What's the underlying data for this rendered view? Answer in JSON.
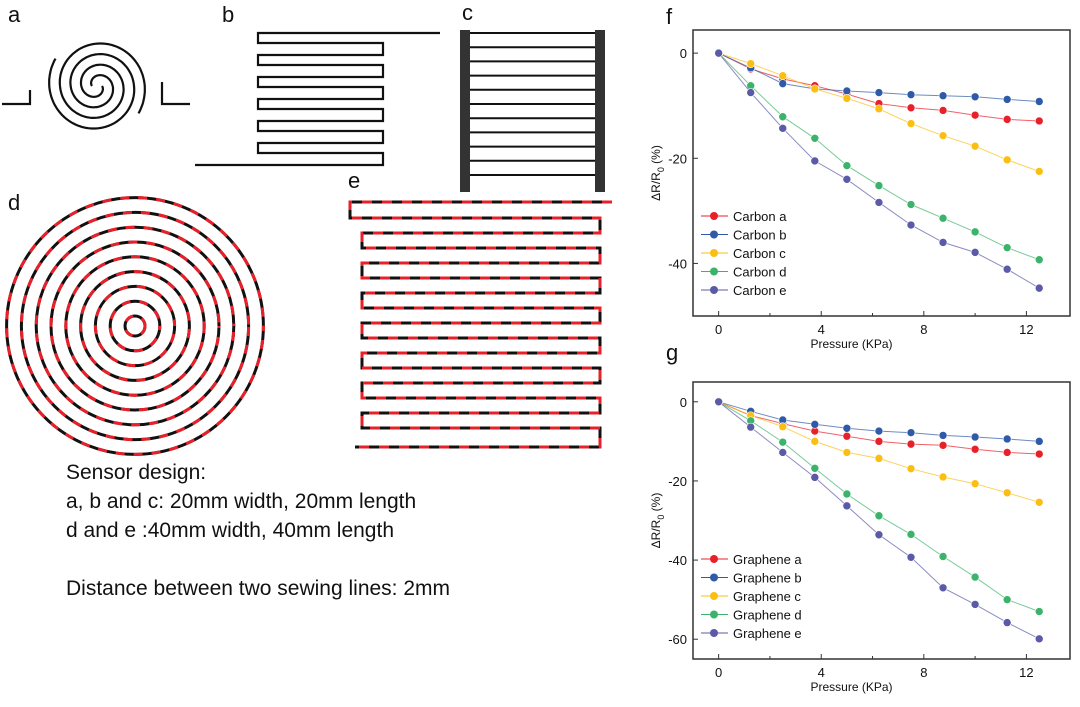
{
  "panel_labels": {
    "a": "a",
    "b": "b",
    "c": "c",
    "d": "d",
    "e": "e",
    "f": "f",
    "g": "g"
  },
  "description": {
    "line1": "Sensor design:",
    "line2": "a, b and c: 20mm width, 20mm length",
    "line3": "d and e :40mm width, 40mm length",
    "line4": "Distance between two sewing lines: 2mm"
  },
  "colors": {
    "line": "#111111",
    "red": "#e8202a",
    "a": "#e8202a",
    "b": "#2f5aa8",
    "c": "#fbbf14",
    "d": "#3cb36a",
    "e": "#5b5aa6"
  },
  "chart_data": [
    {
      "type": "line",
      "panel": "f",
      "xlabel": "Pressure (KPa)",
      "ylabel": {
        "main": "ΔR/R",
        "sub": "0",
        "unit": " (%)"
      },
      "xlim": [
        -1,
        13.7
      ],
      "ylim": [
        -50,
        4.4
      ],
      "xticks": [
        0,
        4,
        8,
        12
      ],
      "yticks": [
        0,
        -20,
        -40
      ],
      "legend": "bottom-left",
      "grid": false,
      "x": [
        0,
        1.25,
        2.5,
        3.75,
        5,
        6.25,
        7.5,
        8.75,
        10,
        11.25,
        12.5
      ],
      "series": [
        {
          "name": "Carbon a",
          "color": "#e8202a",
          "values": [
            0,
            -3,
            -4.9,
            -6.2,
            -7.8,
            -9.6,
            -10.4,
            -10.9,
            -11.8,
            -12.6,
            -12.9
          ]
        },
        {
          "name": "Carbon b",
          "color": "#2f5aa8",
          "values": [
            0,
            -2.8,
            -5.8,
            -6.8,
            -7.2,
            -7.5,
            -7.9,
            -8.1,
            -8.3,
            -8.8,
            -9.2
          ]
        },
        {
          "name": "Carbon c",
          "color": "#fbbf14",
          "values": [
            0,
            -2,
            -4.3,
            -6.8,
            -8.6,
            -10.6,
            -13.4,
            -15.7,
            -17.7,
            -20.3,
            -22.5
          ]
        },
        {
          "name": "Carbon d",
          "color": "#3cb36a",
          "values": [
            0,
            -6.2,
            -12.1,
            -16.2,
            -21.4,
            -25.2,
            -28.8,
            -31.4,
            -34,
            -37,
            -39.3
          ]
        },
        {
          "name": "Carbon e",
          "color": "#5b5aa6",
          "values": [
            0,
            -7.5,
            -14.3,
            -20.5,
            -24,
            -28.4,
            -32.7,
            -36,
            -37.9,
            -41.1,
            -44.7
          ]
        }
      ]
    },
    {
      "type": "line",
      "panel": "g",
      "xlabel": "Pressure (KPa)",
      "ylabel": {
        "main": "ΔR/R",
        "sub": "0",
        "unit": " (%)"
      },
      "xlim": [
        -1,
        13.7
      ],
      "ylim": [
        -65,
        5
      ],
      "xticks": [
        0,
        4,
        8,
        12
      ],
      "yticks": [
        0,
        -20,
        -40,
        -60
      ],
      "legend": "bottom-left",
      "grid": false,
      "x": [
        0,
        1.25,
        2.5,
        3.75,
        5,
        6.25,
        7.5,
        8.75,
        10,
        11.25,
        12.5
      ],
      "series": [
        {
          "name": "Graphene a",
          "color": "#e8202a",
          "values": [
            0,
            -3.5,
            -5.5,
            -7.4,
            -8.7,
            -10,
            -10.7,
            -11,
            -12,
            -12.8,
            -13.2
          ]
        },
        {
          "name": "Graphene b",
          "color": "#2f5aa8",
          "values": [
            0,
            -2.4,
            -4.6,
            -5.7,
            -6.7,
            -7.4,
            -7.8,
            -8.5,
            -8.9,
            -9.4,
            -10
          ]
        },
        {
          "name": "Graphene c",
          "color": "#fbbf14",
          "values": [
            0,
            -3.5,
            -6.3,
            -10,
            -12.8,
            -14.3,
            -16.9,
            -19,
            -20.7,
            -23,
            -25.4
          ]
        },
        {
          "name": "Graphene d",
          "color": "#3cb36a",
          "values": [
            0,
            -4.8,
            -10.2,
            -16.8,
            -23.3,
            -28.8,
            -33.5,
            -39.1,
            -44.3,
            -50,
            -53
          ]
        },
        {
          "name": "Graphene e",
          "color": "#5b5aa6",
          "values": [
            0,
            -6.4,
            -12.8,
            -19.1,
            -26.3,
            -33.6,
            -39.3,
            -47,
            -51.2,
            -55.8,
            -59.9
          ]
        }
      ]
    }
  ]
}
